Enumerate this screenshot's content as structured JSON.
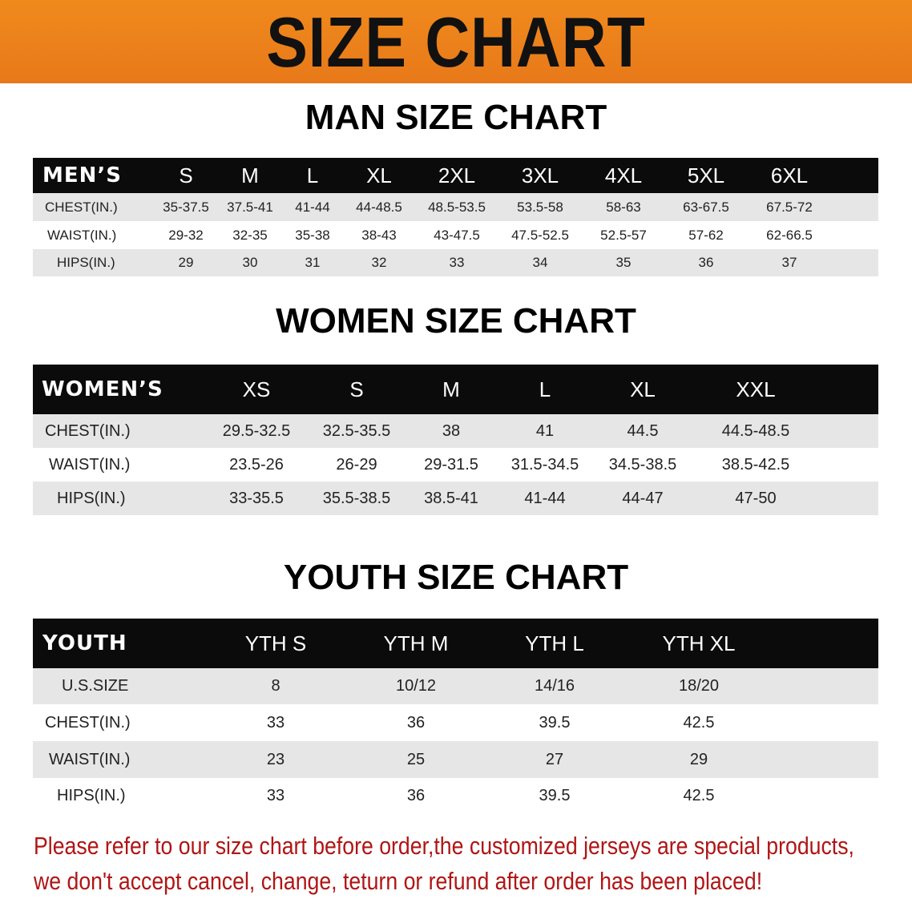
{
  "banner": {
    "title": "SIZE CHART",
    "color": "#ee831b"
  },
  "men": {
    "title": "MAN SIZE CHART",
    "header": [
      "MEN’S",
      "S",
      "M",
      "L",
      "XL",
      "2XL",
      "3XL",
      "4XL",
      "5XL",
      "6XL"
    ],
    "rows": [
      [
        "CHEST(IN.)",
        "35-37.5",
        "37.5-41",
        "41-44",
        "44-48.5",
        "48.5-53.5",
        "53.5-58",
        "58-63",
        "63-67.5",
        "67.5-72"
      ],
      [
        "WAIST(IN.)",
        "29-32",
        "32-35",
        "35-38",
        "38-43",
        "43-47.5",
        "47.5-52.5",
        "52.5-57",
        "57-62",
        "62-66.5"
      ],
      [
        "HIPS(IN.)",
        "29",
        "30",
        "31",
        "32",
        "33",
        "34",
        "35",
        "36",
        "37"
      ]
    ]
  },
  "women": {
    "title": "WOMEN SIZE CHART",
    "header": [
      "WOMEN’S",
      "XS",
      "S",
      "M",
      "L",
      "XL",
      "XXL"
    ],
    "rows": [
      [
        "CHEST(IN.)",
        "29.5-32.5",
        "32.5-35.5",
        "38",
        "41",
        "44.5",
        "44.5-48.5"
      ],
      [
        "WAIST(IN.)",
        "23.5-26",
        "26-29",
        "29-31.5",
        "31.5-34.5",
        "34.5-38.5",
        "38.5-42.5"
      ],
      [
        "HIPS(IN.)",
        "33-35.5",
        "35.5-38.5",
        "38.5-41",
        "41-44",
        "44-47",
        "47-50"
      ]
    ]
  },
  "youth": {
    "title": "YOUTH SIZE CHART",
    "header": [
      "YOUTH",
      "YTH S",
      "YTH M",
      "YTH L",
      "YTH XL"
    ],
    "rows": [
      [
        "U.S.SIZE",
        "8",
        "10/12",
        "14/16",
        "18/20"
      ],
      [
        "CHEST(IN.)",
        "33",
        "36",
        "39.5",
        "42.5"
      ],
      [
        "WAIST(IN.)",
        "23",
        "25",
        "27",
        "29"
      ],
      [
        "HIPS(IN.)",
        "33",
        "36",
        "39.5",
        "42.5"
      ]
    ]
  },
  "notice": {
    "line1": "Please refer to our size chart before order,the customized jerseys are special products,",
    "line2": "we don't accept cancel, change, teturn or refund after order has been placed!",
    "color": "#b01515"
  }
}
